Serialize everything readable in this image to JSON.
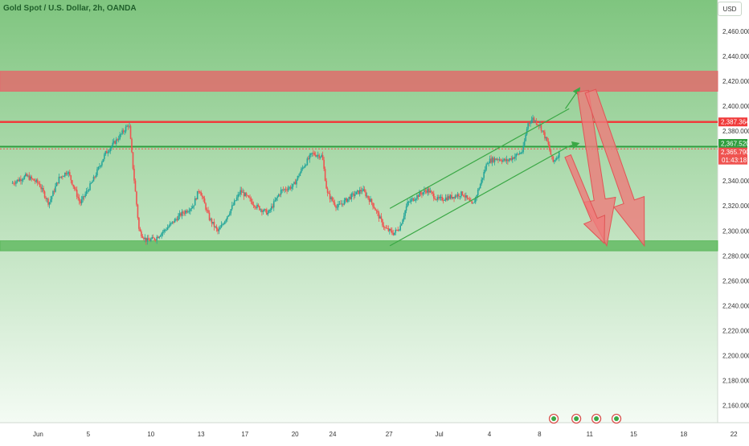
{
  "header": {
    "symbol_title": "Gold Spot / U.S. Dollar, 2h, OANDA",
    "currency_button": "USD"
  },
  "colors": {
    "background_top": "#7fc57f",
    "background_bottom": "#f4fbf4",
    "up_candle": "#26a69a",
    "down_candle": "#ef5350",
    "resistance_zone": "#e06c6c",
    "support_zone": "#5cb85c",
    "level_red": "#f03b3b",
    "level_green": "#2e9e3e",
    "channel": "#3aa845",
    "arrow_fill": "#ef7b7b"
  },
  "chart_data": {
    "type": "candlestick",
    "title": "Gold Spot / U.S. Dollar, 2h, OANDA",
    "y_axis": {
      "min": 2150,
      "max": 2480,
      "ticks": [
        2460,
        2440,
        2420,
        2400,
        2380,
        2340,
        2320,
        2300,
        2280,
        2260,
        2240,
        2220,
        2200,
        2180,
        2160
      ],
      "tick_labels": [
        "2,460.000",
        "2,440.000",
        "2,420.000",
        "2,400.000",
        "2,380.000",
        "2,340.000",
        "2,320.000",
        "2,300.000",
        "2,280.000",
        "2,260.000",
        "2,240.000",
        "2,220.000",
        "2,200.000",
        "2,180.000",
        "2,160.000"
      ]
    },
    "x_axis": {
      "ticks": [
        {
          "label": "Jun",
          "x": 1.5
        },
        {
          "label": "5",
          "x": 5.5
        },
        {
          "label": "10",
          "x": 10.5
        },
        {
          "label": "13",
          "x": 14.5
        },
        {
          "label": "17",
          "x": 18
        },
        {
          "label": "20",
          "x": 22
        },
        {
          "label": "24",
          "x": 25
        },
        {
          "label": "27",
          "x": 29.5
        },
        {
          "label": "Jul",
          "x": 33.5
        },
        {
          "label": "4",
          "x": 37.5
        },
        {
          "label": "8",
          "x": 41.5
        },
        {
          "label": "11",
          "x": 45.5
        },
        {
          "label": "15",
          "x": 49
        },
        {
          "label": "18",
          "x": 53
        },
        {
          "label": "22",
          "x": 57
        }
      ]
    },
    "price_path": [
      [
        0,
        2338
      ],
      [
        1.2,
        2344
      ],
      [
        2.2,
        2338
      ],
      [
        3,
        2322
      ],
      [
        3.8,
        2342
      ],
      [
        4.5,
        2348
      ],
      [
        5.5,
        2322
      ],
      [
        6.5,
        2340
      ],
      [
        7.5,
        2362
      ],
      [
        8.5,
        2374
      ],
      [
        9.4,
        2386
      ],
      [
        9.7,
        2352
      ],
      [
        10.2,
        2300
      ],
      [
        10.8,
        2292
      ],
      [
        11.5,
        2294
      ],
      [
        12.5,
        2303
      ],
      [
        13.5,
        2313
      ],
      [
        14.5,
        2320
      ],
      [
        15,
        2334
      ],
      [
        15.8,
        2310
      ],
      [
        16.5,
        2299
      ],
      [
        17.5,
        2317
      ],
      [
        18.3,
        2332
      ],
      [
        19.5,
        2320
      ],
      [
        20.5,
        2314
      ],
      [
        21.5,
        2332
      ],
      [
        22.5,
        2336
      ],
      [
        23.2,
        2350
      ],
      [
        24,
        2362
      ],
      [
        24.8,
        2360
      ],
      [
        25.2,
        2330
      ],
      [
        26,
        2319
      ],
      [
        27,
        2327
      ],
      [
        28,
        2333
      ],
      [
        28.8,
        2322
      ],
      [
        29.8,
        2302
      ],
      [
        30.5,
        2298
      ],
      [
        31,
        2303
      ],
      [
        31.6,
        2322
      ],
      [
        32.5,
        2329
      ],
      [
        33.2,
        2333
      ],
      [
        34,
        2325
      ],
      [
        35,
        2327
      ],
      [
        36,
        2330
      ],
      [
        36.8,
        2320
      ],
      [
        37.5,
        2340
      ],
      [
        38,
        2356
      ],
      [
        38.8,
        2358
      ],
      [
        39.5,
        2356
      ],
      [
        40.2,
        2360
      ],
      [
        40.8,
        2364
      ],
      [
        41.2,
        2386
      ],
      [
        41.6,
        2390
      ],
      [
        42.2,
        2384
      ],
      [
        42.8,
        2370
      ],
      [
        43.2,
        2355
      ],
      [
        43.7,
        2362
      ]
    ],
    "zones": [
      {
        "name": "resistance",
        "y_from": 2412,
        "y_to": 2428,
        "x_from": 0,
        "x_to": 56.5
      },
      {
        "name": "support",
        "y_from": 2284,
        "y_to": 2292,
        "x_from": 0,
        "x_to": 60
      }
    ],
    "levels": [
      {
        "name": "level-2387",
        "y": 2387.364,
        "label": "2,387.364",
        "color": "#f03b3b"
      },
      {
        "name": "level-2367",
        "y": 2367.52,
        "label": "2,367.520",
        "color": "#2e9e3e"
      },
      {
        "name": "current-price",
        "y": 2365.79,
        "label": "2,365.790",
        "color": "#ef5350"
      }
    ],
    "countdown": "01:43:18",
    "channel": {
      "lower": [
        [
          30.2,
          2288
        ],
        [
          44.5,
          2368
        ]
      ],
      "upper": [
        [
          30.2,
          2318
        ],
        [
          44.5,
          2398
        ]
      ]
    },
    "projection_arrows": [
      {
        "from": [
          44.5,
          2368
        ],
        "to": [
          45.2,
          2370
        ]
      },
      {
        "from": [
          44.2,
          2398
        ],
        "to": [
          45.3,
          2414
        ]
      }
    ],
    "bear_arrows": [
      {
        "from": [
          45.6,
          2412
        ],
        "to": [
          47.5,
          2288
        ]
      },
      {
        "from": [
          46.2,
          2412
        ],
        "to": [
          50.5,
          2288
        ]
      },
      {
        "from": [
          44.4,
          2360
        ],
        "to": [
          47.3,
          2290
        ]
      }
    ],
    "event_markers": [
      43.4,
      45.2,
      46.8,
      48.4
    ]
  }
}
